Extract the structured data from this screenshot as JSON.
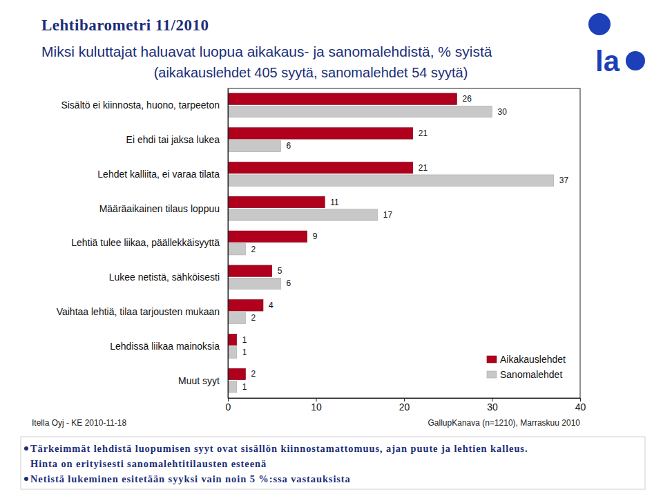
{
  "chart_data": {
    "type": "bar",
    "orientation": "horizontal",
    "header": "Lehtibarometri 11/2010",
    "logo": "la",
    "title": "Miksi kuluttajat haluavat luopua aikakaus- ja sanomalehdistä, % syistä",
    "subtitle": "(aikakauslehdet 405 syytä, sanomalehdet 54 syytä)",
    "categories": [
      "Sisältö ei kiinnosta, huono, tarpeeton",
      "Ei ehdi tai jaksa lukea",
      "Lehdet kalliita, ei varaa tilata",
      "Määräaikainen tilaus loppuu",
      "Lehtiä tulee liikaa, päällekkäisyyttä",
      "Lukee netistä, sähköisesti",
      "Vaihtaa lehtiä, tilaa tarjousten mukaan",
      "Lehdissä liikaa mainoksia",
      "Muut syyt"
    ],
    "series": [
      {
        "name": "Aikakauslehdet",
        "color": "#b0001e",
        "values": [
          26,
          21,
          21,
          11,
          9,
          5,
          4,
          1,
          2
        ]
      },
      {
        "name": "Sanomalehdet",
        "color": "#c8c8c8",
        "values": [
          30,
          6,
          37,
          17,
          2,
          6,
          2,
          1,
          1
        ]
      }
    ],
    "xlim": [
      0,
      40
    ],
    "xticks": [
      0,
      10,
      20,
      30,
      40
    ],
    "grid": false,
    "legend": "lower right",
    "data_labels": true,
    "source_left": "Itella Oyj - KE 2010-11-18",
    "source_right": "GallupKanava (n=1210), Marraskuu 2010",
    "notes": [
      [
        "Tärkeimmät lehdistä luopumisen syyt ovat sisällön kiinnostamattomuus, ajan puute ja lehtien kalleus.",
        "Hinta on erityisesti sanomalehtitilausten esteenä"
      ],
      [
        "Netistä lukeminen esitetään syyksi vain noin 5 %:ssa vastauksista"
      ]
    ]
  }
}
